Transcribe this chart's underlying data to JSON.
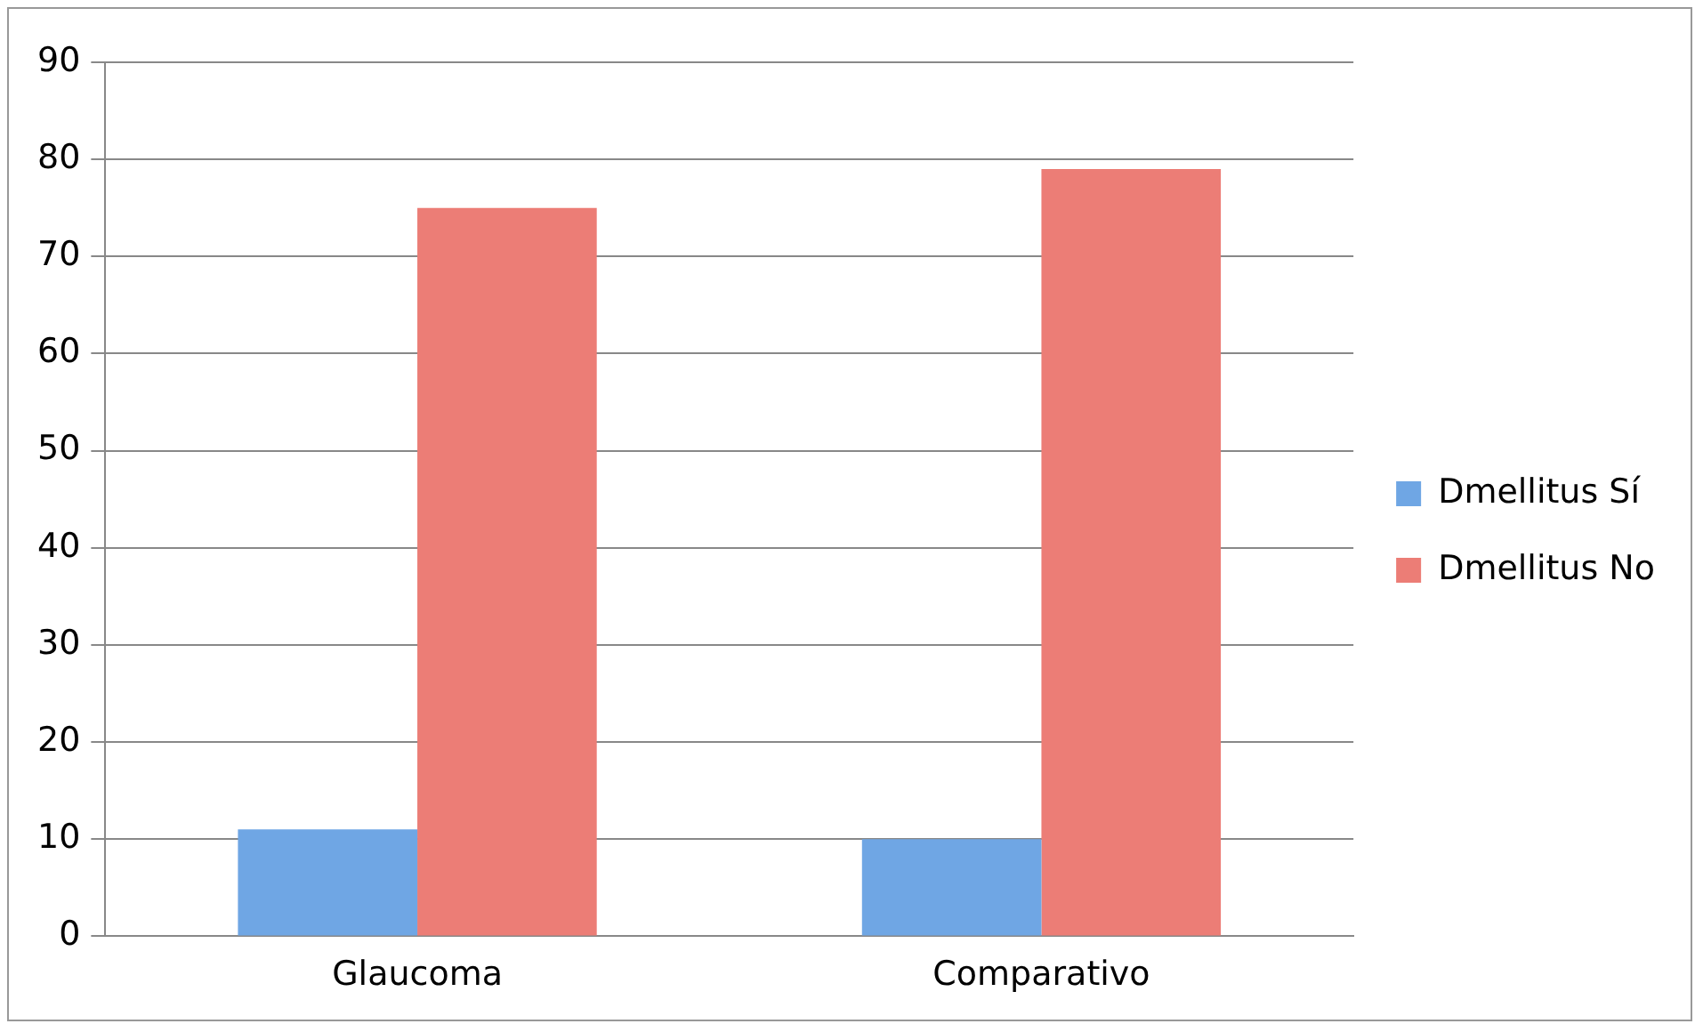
{
  "chart_data": {
    "type": "bar",
    "categories": [
      "Glaucoma",
      "Comparativo"
    ],
    "series": [
      {
        "name": "Dmellitus Sí",
        "color": "#6fa6e4",
        "values": [
          11,
          10
        ]
      },
      {
        "name": "Dmellitus No",
        "color": "#ec7d76",
        "values": [
          75,
          79
        ]
      }
    ],
    "ylim": [
      0,
      90
    ],
    "yticks": [
      0,
      10,
      20,
      30,
      40,
      50,
      60,
      70,
      80,
      90
    ],
    "grid": "y",
    "legend": "right"
  }
}
